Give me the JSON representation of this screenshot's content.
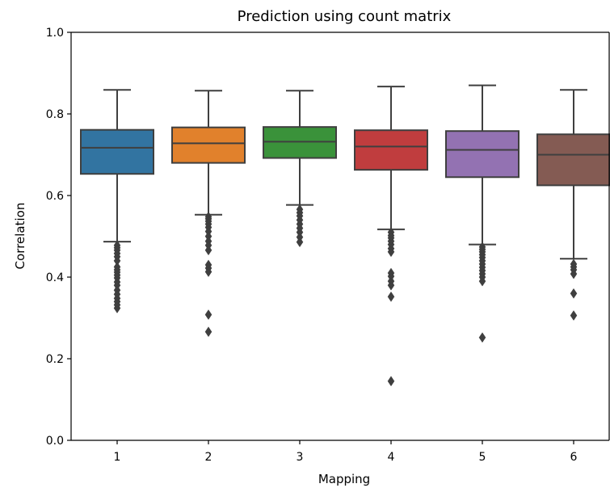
{
  "chart_data": {
    "type": "box",
    "title": "Prediction using count matrix",
    "xlabel": "Mapping",
    "ylabel": "Correlation",
    "ylim": [
      0.0,
      1.0
    ],
    "yticks": [
      "0.0",
      "0.2",
      "0.4",
      "0.6",
      "0.8",
      "1.0"
    ],
    "grid": false,
    "categories": [
      "1",
      "2",
      "3",
      "4",
      "5",
      "6"
    ],
    "boxes": [
      {
        "category": "1",
        "color": "#3274a1",
        "whisker_low": 0.487,
        "q1": 0.653,
        "median": 0.717,
        "q3": 0.761,
        "whisker_high": 0.859,
        "outliers": [
          0.478,
          0.472,
          0.466,
          0.458,
          0.45,
          0.44,
          0.425,
          0.418,
          0.412,
          0.405,
          0.398,
          0.388,
          0.38,
          0.368,
          0.358,
          0.348,
          0.34,
          0.332,
          0.324
        ]
      },
      {
        "category": "2",
        "color": "#e1812c",
        "whisker_low": 0.553,
        "q1": 0.68,
        "median": 0.728,
        "q3": 0.767,
        "whisker_high": 0.857,
        "outliers": [
          0.548,
          0.543,
          0.537,
          0.53,
          0.522,
          0.512,
          0.5,
          0.488,
          0.478,
          0.466,
          0.43,
          0.422,
          0.413,
          0.308,
          0.266
        ]
      },
      {
        "category": "3",
        "color": "#3a923a",
        "whisker_low": 0.577,
        "q1": 0.692,
        "median": 0.732,
        "q3": 0.768,
        "whisker_high": 0.857,
        "outliers": [
          0.566,
          0.558,
          0.55,
          0.54,
          0.53,
          0.52,
          0.51,
          0.498,
          0.486
        ]
      },
      {
        "category": "4",
        "color": "#c03d3e",
        "whisker_low": 0.517,
        "q1": 0.663,
        "median": 0.72,
        "q3": 0.76,
        "whisker_high": 0.867,
        "outliers": [
          0.51,
          0.502,
          0.496,
          0.488,
          0.48,
          0.47,
          0.462,
          0.41,
          0.402,
          0.39,
          0.38,
          0.352,
          0.145
        ]
      },
      {
        "category": "5",
        "color": "#9372b2",
        "whisker_low": 0.48,
        "q1": 0.645,
        "median": 0.712,
        "q3": 0.758,
        "whisker_high": 0.87,
        "outliers": [
          0.474,
          0.468,
          0.462,
          0.455,
          0.448,
          0.44,
          0.432,
          0.424,
          0.416,
          0.408,
          0.4,
          0.39,
          0.252
        ]
      },
      {
        "category": "6",
        "color": "#845b53",
        "whisker_low": 0.445,
        "q1": 0.625,
        "median": 0.7,
        "q3": 0.75,
        "whisker_high": 0.859,
        "outliers": [
          0.432,
          0.425,
          0.418,
          0.408,
          0.36,
          0.306
        ]
      }
    ]
  }
}
